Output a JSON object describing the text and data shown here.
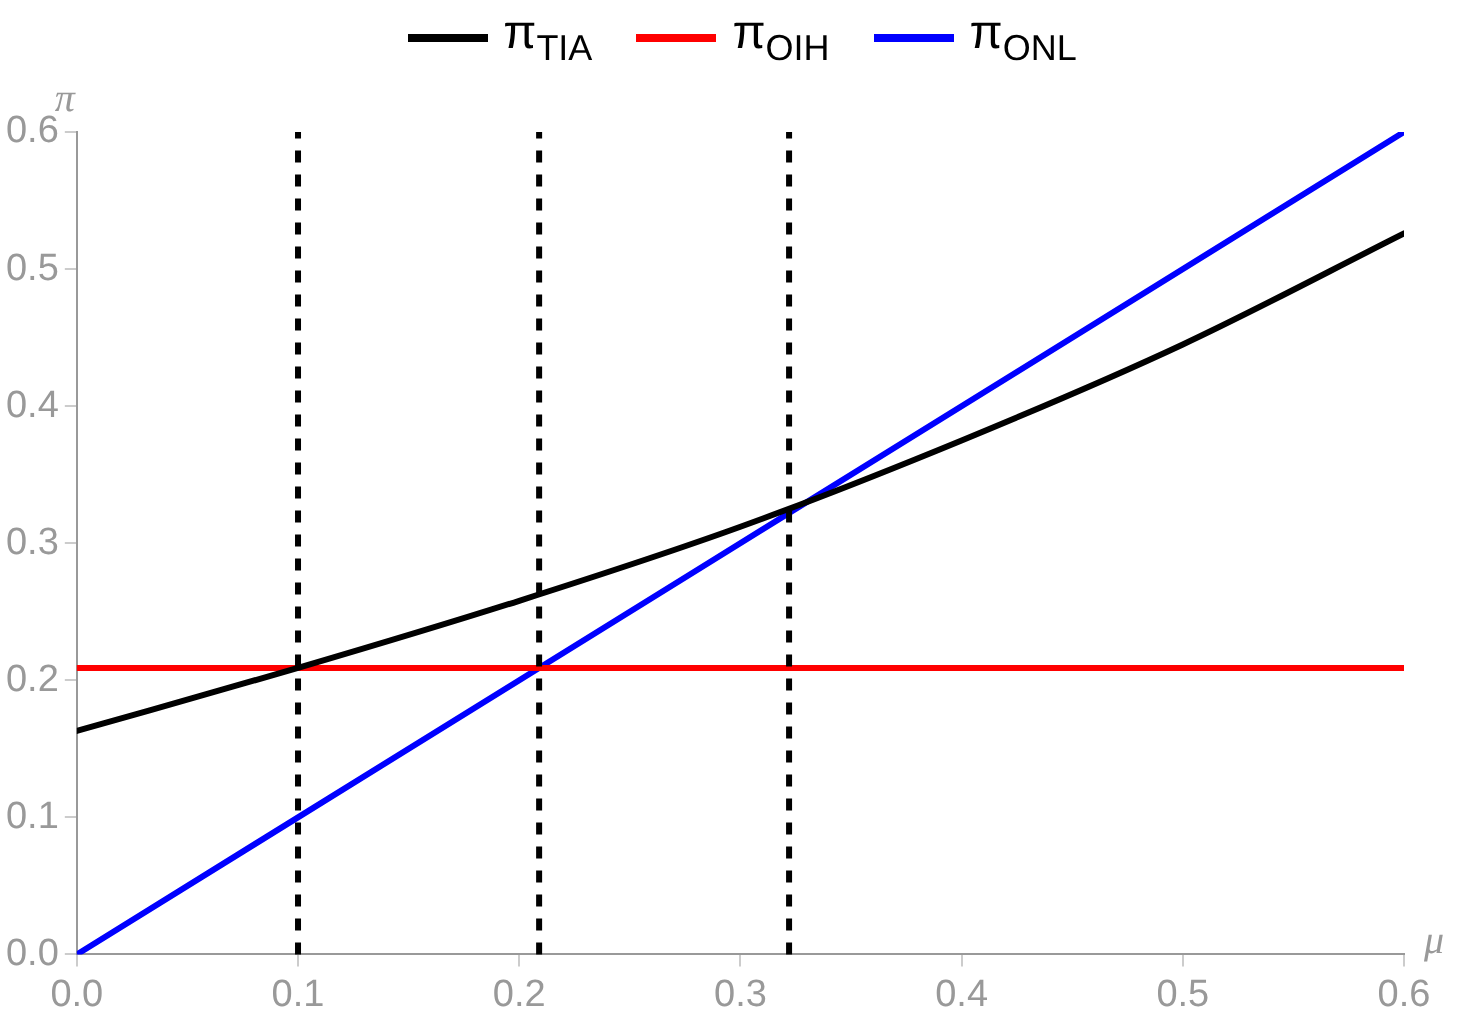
{
  "chart_data": {
    "type": "line",
    "xlabel": "μ",
    "ylabel": "π",
    "legend": "top",
    "grid": false,
    "marker": "none",
    "line_style": "solid",
    "xlim": [
      0,
      0.6
    ],
    "xticks": [
      {
        "value": 0,
        "label": "0.0"
      },
      0.1,
      0.2,
      0.3,
      0.4,
      0.5,
      0.6
    ],
    "ylim": [
      0,
      0.6
    ],
    "yticks": [
      {
        "value": 0,
        "label": "0.0"
      },
      0.1,
      0.2,
      0.3,
      0.4,
      0.5,
      0.6
    ],
    "series": [
      {
        "name": "π$_{TIA}$",
        "color": "#000000",
        "x": [
          0,
          0.1,
          0.2,
          0.3,
          0.4,
          0.5,
          0.6
        ],
        "values": [
          0.163,
          0.209,
          0.258,
          0.312,
          0.375,
          0.445,
          0.526
        ]
      },
      {
        "name": "π$_{OIH}$",
        "color": "#ff0000",
        "x": [
          0,
          0.6
        ],
        "values": [
          0.209,
          0.209
        ]
      },
      {
        "name": "π$_{ONL}$",
        "color": "#0000ff",
        "x": [
          0,
          0.6
        ],
        "values": [
          0,
          0.6
        ]
      }
    ],
    "ref_lines": [
      {
        "axis": "x",
        "value": 0.1,
        "color": "#000000",
        "line_style": "dashed"
      },
      {
        "axis": "x",
        "value": 0.209,
        "color": "#000000",
        "line_style": "dashed"
      },
      {
        "axis": "x",
        "value": 0.322,
        "color": "#000000",
        "line_style": "dashed"
      }
    ]
  }
}
